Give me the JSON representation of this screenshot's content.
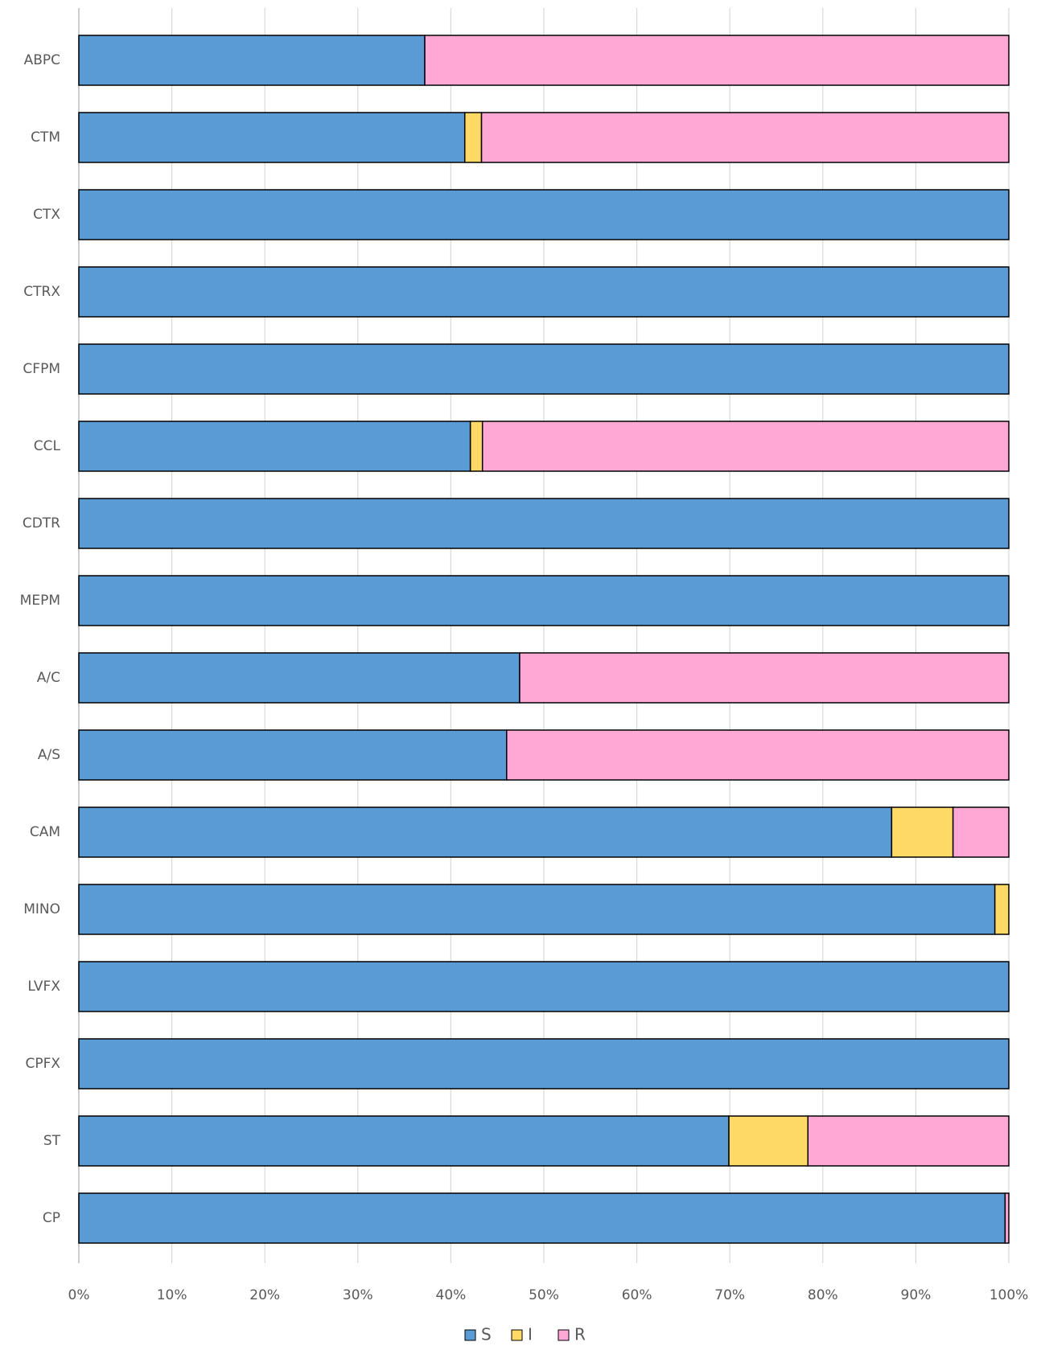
{
  "chart_data": {
    "type": "stacked-barh",
    "categories": [
      "ABPC",
      "CTM",
      "CTX",
      "CTRX",
      "CFPM",
      "CCL",
      "CDTR",
      "MEPM",
      "A/C",
      "A/S",
      "CAM",
      "MINO",
      "LVFX",
      "CPFX",
      "ST",
      "CP"
    ],
    "series": [
      {
        "name": "S",
        "color": "#5b9bd5",
        "values": [
          37.2,
          41.5,
          100,
          100,
          100,
          42.1,
          100,
          100,
          47.4,
          46.0,
          87.4,
          98.5,
          100,
          100,
          69.9,
          99.6
        ]
      },
      {
        "name": "I",
        "color": "#ffd966",
        "values": [
          0,
          1.8,
          0,
          0,
          0,
          1.3,
          0,
          0,
          0,
          0,
          6.6,
          1.5,
          0,
          0,
          8.5,
          0
        ]
      },
      {
        "name": "R",
        "color": "#ffa8d6",
        "values": [
          62.8,
          56.7,
          0,
          0,
          0,
          56.6,
          0,
          0,
          52.6,
          54.0,
          6.0,
          0,
          0,
          0,
          21.6,
          0.4
        ]
      }
    ],
    "xlim": [
      0,
      100
    ],
    "xticks": [
      {
        "value": 0,
        "label": "0%"
      },
      {
        "value": 10,
        "label": "10%"
      },
      {
        "value": 20,
        "label": "20%"
      },
      {
        "value": 30,
        "label": "30%"
      },
      {
        "value": 40,
        "label": "40%"
      },
      {
        "value": 50,
        "label": "50%"
      },
      {
        "value": 60,
        "label": "60%"
      },
      {
        "value": 70,
        "label": "70%"
      },
      {
        "value": 80,
        "label": "80%"
      },
      {
        "value": 90,
        "label": "90%"
      },
      {
        "value": 100,
        "label": "100%"
      }
    ],
    "grid": true,
    "legend": "bottom"
  }
}
